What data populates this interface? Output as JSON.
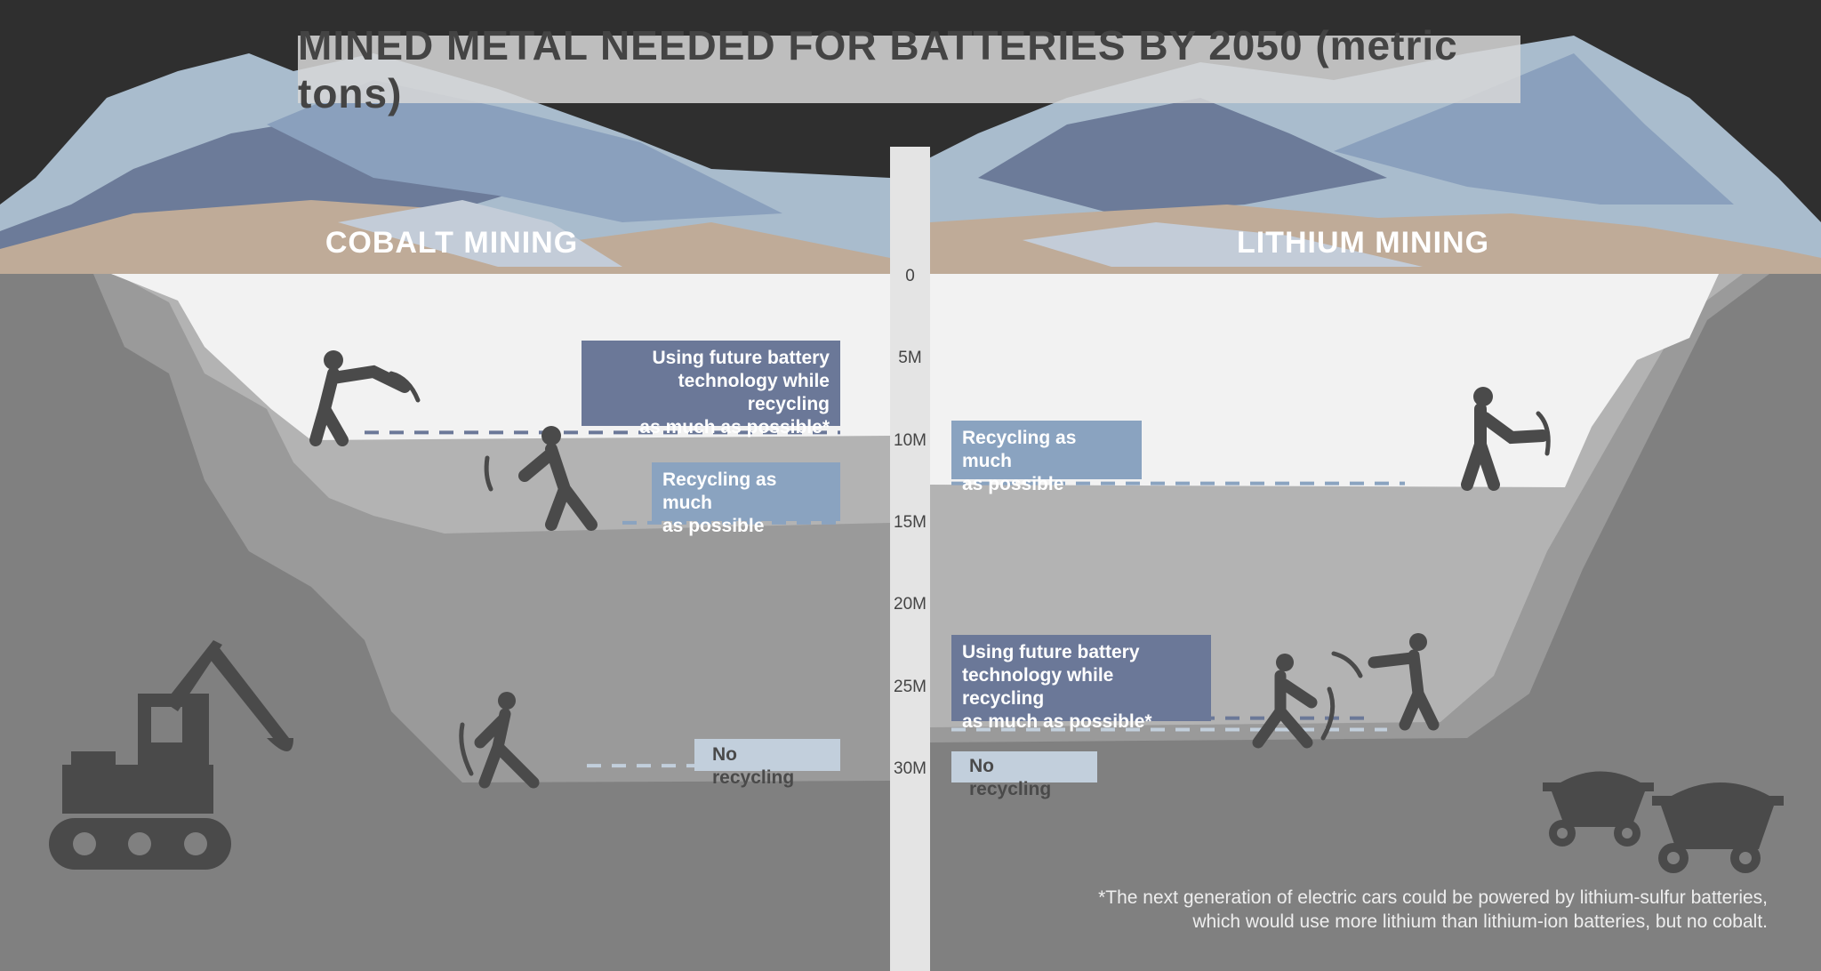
{
  "title": "MINED METAL NEEDED FOR BATTERIES BY 2050 (metric tons)",
  "footnote": {
    "line1": "*The next generation of electric cars could be powered by lithium-sulfur batteries,",
    "line2": "which would use more lithium than lithium-ion batteries, but no cobalt."
  },
  "colors": {
    "future": "#6b7898",
    "recycling": "#8aa3c0",
    "no_recycling": "#c2cfdc"
  },
  "chart_data": {
    "type": "bar",
    "title": "MINED METAL NEEDED FOR BATTERIES BY 2050 (metric tons)",
    "axis": {
      "ticks": [
        "0",
        "5M",
        "10M",
        "15M",
        "20M",
        "25M",
        "30M"
      ],
      "tick_values": [
        0,
        5000000,
        10000000,
        15000000,
        20000000,
        25000000,
        30000000
      ],
      "ylim": [
        0,
        30000000
      ],
      "direction": "downward"
    },
    "panels": [
      {
        "name": "COBALT MINING",
        "scenarios": [
          {
            "label": "Using future battery\ntechnology while recycling\nas much as possible*",
            "value": 9500000,
            "color": "#6b7898"
          },
          {
            "label": "Recycling as much\nas possible",
            "value": 15000000,
            "color": "#8aa3c0"
          },
          {
            "label": "No recycling",
            "value": 29800000,
            "color": "#c2cfdc"
          }
        ]
      },
      {
        "name": "LITHIUM MINING",
        "scenarios": [
          {
            "label": "Recycling as much\nas possible",
            "value": 12600000,
            "color": "#8aa3c0"
          },
          {
            "label": "Using future battery\ntechnology while recycling\nas much as possible*",
            "value": 26900000,
            "color": "#6b7898"
          },
          {
            "label": "No recycling",
            "value": 27600000,
            "color": "#c2cfdc"
          }
        ]
      }
    ]
  }
}
